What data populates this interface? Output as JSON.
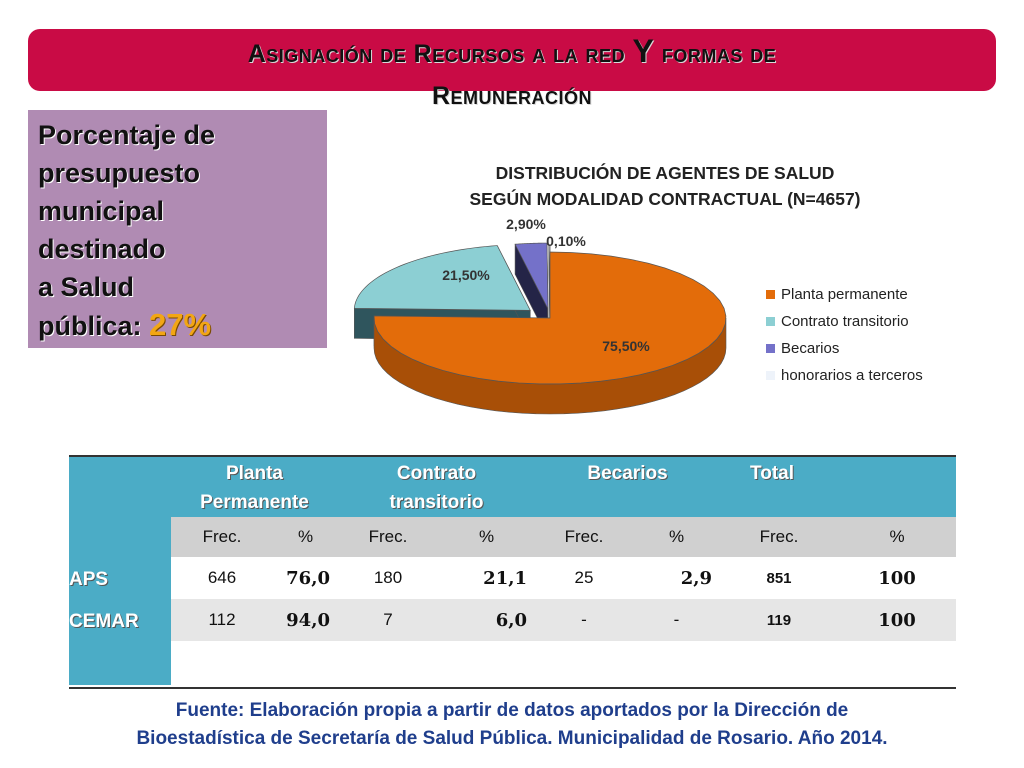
{
  "banner": {
    "line1_a": "Asignación de Recursos a la red",
    "line1_b": "Y",
    "line1_c": "formas de",
    "line2": "Remuneración"
  },
  "side": {
    "text": "Porcentaje de\npresupuesto\n municipal\ndestinado\n a Salud\npública: ",
    "highlight": "27%"
  },
  "chart_data": {
    "type": "pie",
    "title": "DISTRIBUCIÓN DE AGENTES DE SALUD SEGÚN MODALIDAD CONTRACTUAL  (N=4657)",
    "title_lines": [
      "DISTRIBUCIÓN DE AGENTES DE SALUD",
      "SEGÚN MODALIDAD CONTRACTUAL  (N=4657)"
    ],
    "categories": [
      "Planta permanente",
      "Contrato transitorio",
      "Becarios",
      "honorarios a terceros"
    ],
    "values": [
      75.5,
      21.5,
      2.9,
      0.1
    ],
    "labels": [
      "75,50%",
      "21,50%",
      "2,90%",
      "0,10%"
    ],
    "colors": [
      "#e36c0a",
      "#8ccfd3",
      "#7471c9",
      "#eef3fa"
    ],
    "side_colors": [
      "#a84f07",
      "#2f555d",
      "#242447",
      "#b0b8c4"
    ],
    "exploded": true,
    "three_d": true,
    "legend_position": "right"
  },
  "table": {
    "headers": [
      "Planta\nPermanente",
      "Contrato\ntransitorio",
      "Becarios",
      "Total"
    ],
    "subheaders": [
      "Frec.",
      "%",
      "Frec.",
      "%",
      "Frec.",
      "%",
      "Frec.",
      "%"
    ],
    "rows": [
      {
        "label": "APS",
        "values": [
          "646",
          "76,0",
          "180",
          "21,1",
          "25",
          "2,9",
          "851",
          "100"
        ]
      },
      {
        "label": "CEMAR",
        "values": [
          "112",
          "94,0",
          "7",
          "6,0",
          "-",
          "-",
          "119",
          "100"
        ]
      }
    ]
  },
  "footer": {
    "line1": "Fuente: Elaboración propia a partir de datos aportados por la Dirección de",
    "line2": "Bioestadística de Secretaría de Salud Pública. Municipalidad de Rosario. Año 2014."
  }
}
